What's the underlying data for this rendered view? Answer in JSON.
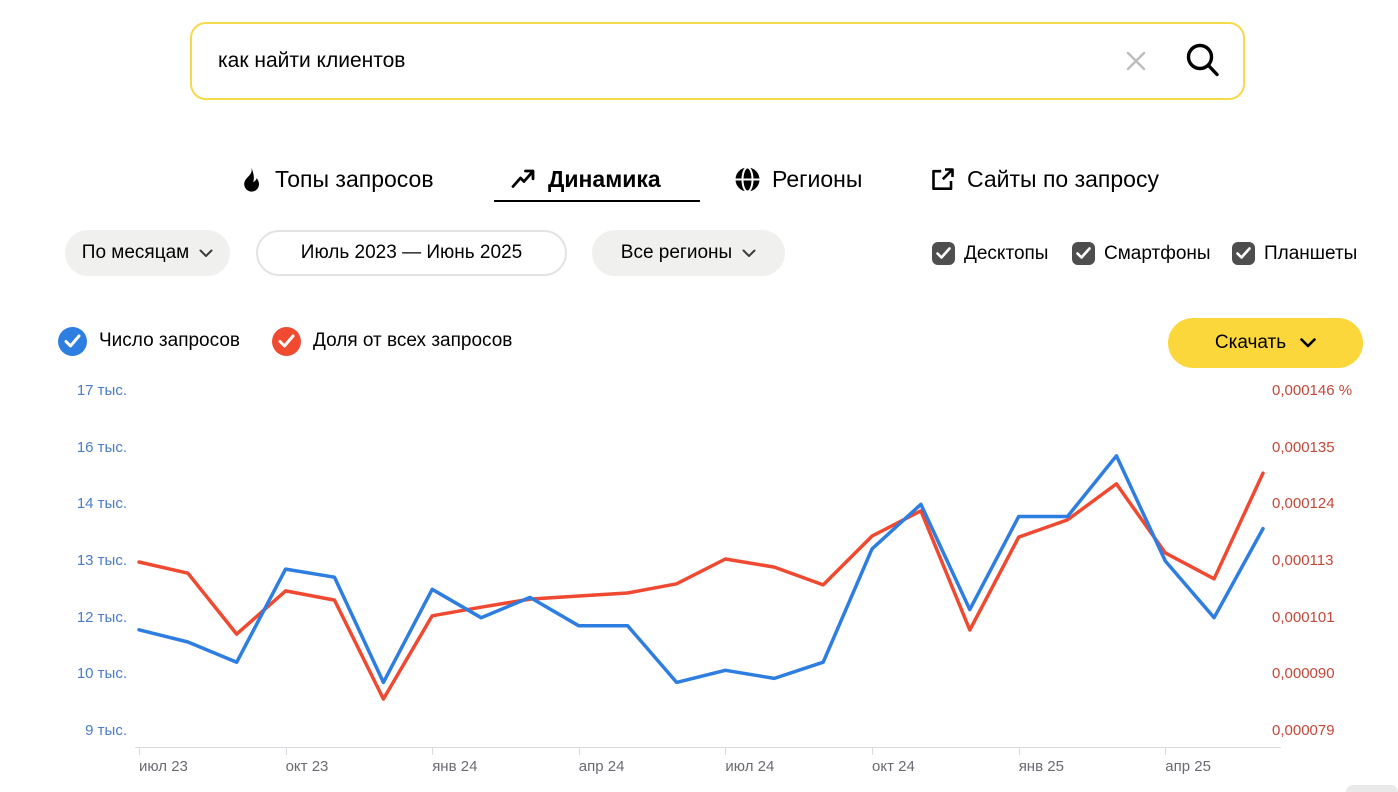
{
  "search": {
    "value": "как найти клиентов"
  },
  "tabs": [
    {
      "label": "Топы запросов",
      "active": false
    },
    {
      "label": "Динамика",
      "active": true
    },
    {
      "label": "Регионы",
      "active": false
    },
    {
      "label": "Сайты по запросу",
      "active": false
    }
  ],
  "filters": {
    "period": "По месяцам",
    "date_range": "Июль 2023 — Июнь 2025",
    "region": "Все регионы"
  },
  "devices": [
    {
      "label": "Десктопы",
      "checked": true
    },
    {
      "label": "Смартфоны",
      "checked": true
    },
    {
      "label": "Планшеты",
      "checked": true
    }
  ],
  "legend": [
    {
      "label": "Число запросов",
      "color": "#2e7de0"
    },
    {
      "label": "Доля от всех запросов",
      "color": "#f04a31"
    }
  ],
  "download": {
    "label": "Скачать"
  },
  "chart_data": {
    "type": "line",
    "x": [
      "июл 23",
      "авг 23",
      "сен 23",
      "окт 23",
      "ноя 23",
      "дек 23",
      "янв 24",
      "фев 24",
      "мар 24",
      "апр 24",
      "май 24",
      "июн 24",
      "июл 24",
      "авг 24",
      "сен 24",
      "окт 24",
      "ноя 24",
      "дек 24",
      "янв 25",
      "фев 25",
      "мар 25",
      "апр 25",
      "май 25",
      "июн 25"
    ],
    "x_tick_labels": [
      "июл 23",
      "окт 23",
      "янв 24",
      "апр 24",
      "июл 24",
      "окт 24",
      "янв 25",
      "апр 25"
    ],
    "series": [
      {
        "name": "Число запросов",
        "axis": "left",
        "color": "#2e7de0",
        "values": [
          11300,
          11000,
          10500,
          12800,
          12600,
          10000,
          12300,
          11600,
          12100,
          11400,
          11400,
          10000,
          10300,
          10100,
          10500,
          13300,
          14400,
          11800,
          14100,
          14100,
          15600,
          13000,
          11600,
          13800
        ]
      },
      {
        "name": "Доля от всех запросов",
        "axis": "right",
        "color": "#ef4a31",
        "values": [
          0.0001123,
          0.0001101,
          9.81e-05,
          0.0001066,
          0.0001048,
          8.53e-05,
          0.0001017,
          0.0001034,
          0.000105,
          0.0001056,
          0.0001062,
          0.000108,
          0.0001129,
          0.0001113,
          0.0001078,
          0.0001174,
          0.0001224,
          9.89e-05,
          0.0001172,
          0.0001206,
          0.0001277,
          0.0001141,
          0.000109,
          0.0001298
        ]
      }
    ],
    "y_left_ticks": [
      "17 тыс.",
      "16 тыс.",
      "14 тыс.",
      "13 тыс.",
      "12 тыс.",
      "10 тыс.",
      "9 тыс."
    ],
    "y_right_ticks": [
      "0,000146 %",
      "0,000135",
      "0,000124",
      "0,000113",
      "0,000101",
      "0,000090",
      "0,000079"
    ],
    "y_left_range": [
      8800,
      17200
    ],
    "y_right_range": [
      7.9e-05,
      0.000146
    ],
    "grid": false,
    "legend_position": "top-left"
  }
}
